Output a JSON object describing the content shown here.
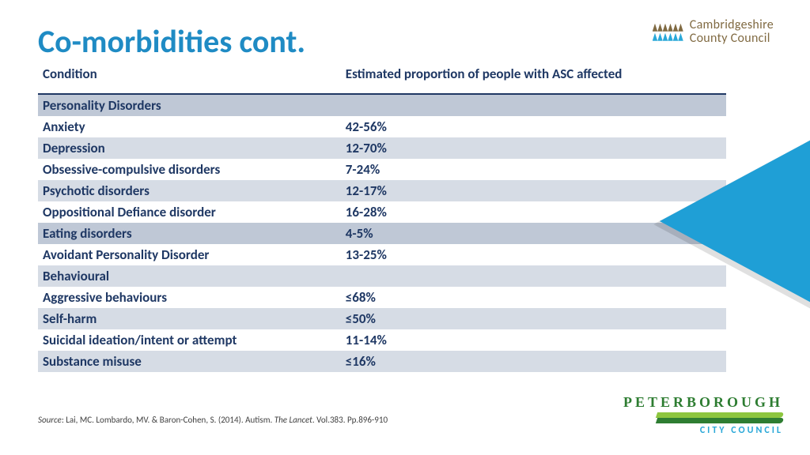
{
  "title": "Co-morbidities cont.",
  "table": {
    "col1": "Condition",
    "col2": "Estimated proportion of people with ASC affected",
    "rows": [
      {
        "c": "Personality Disorders",
        "v": "",
        "shade": "row-shade2"
      },
      {
        "c": "Anxiety",
        "v": "42-56%",
        "shade": ""
      },
      {
        "c": "Depression",
        "v": "12-70%",
        "shade": "row-shade"
      },
      {
        "c": "Obsessive-compulsive disorders",
        "v": "7-24%",
        "shade": ""
      },
      {
        "c": "Psychotic disorders",
        "v": "12-17%",
        "shade": "row-shade"
      },
      {
        "c": "Oppositional Defiance disorder",
        "v": "16-28%",
        "shade": ""
      },
      {
        "c": "Eating disorders",
        "v": "4-5%",
        "shade": "row-shade2"
      },
      {
        "c": "Avoidant Personality Disorder",
        "v": "13-25%",
        "shade": ""
      },
      {
        "c": "Behavioural",
        "v": "",
        "shade": "row-shade"
      },
      {
        "c": "Aggressive behaviours",
        "v": "≤68%",
        "shade": ""
      },
      {
        "c": "Self-harm",
        "v": "≤50%",
        "shade": "row-shade"
      },
      {
        "c": "Suicidal ideation/intent or attempt",
        "v": "11-14%",
        "shade": ""
      },
      {
        "c": "Substance misuse",
        "v": "≤16%",
        "shade": "row-shade"
      }
    ]
  },
  "source": {
    "label": "Source",
    "text1": ": Lai, MC. Lombardo, MV. & Baron-Cohen, S. (2014). Autism. ",
    "journal": "The Lancet",
    "text2": ". Vol.383. Pp.896-910"
  },
  "logos": {
    "cambs1": "Cambridgeshire",
    "cambs2": "County Council",
    "peter1": "PETERBOROUGH",
    "peter2": "CITY COUNCIL"
  },
  "colors": {
    "title": "#1f8bc4",
    "text": "#1f3864",
    "shade_light": "#d6dce5",
    "shade_dark": "#bfc8d6",
    "accent_blue": "#1f9fd6"
  }
}
